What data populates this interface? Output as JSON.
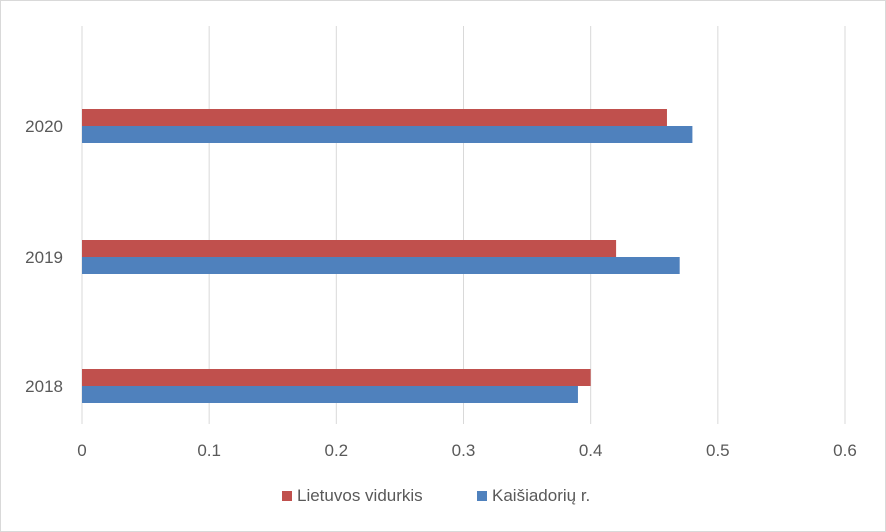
{
  "chart_data": {
    "type": "bar",
    "orientation": "horizontal",
    "categories": [
      "2018",
      "2019",
      "2020"
    ],
    "series": [
      {
        "name": "Lietuvos vidurkis",
        "color": "#c0504d",
        "values": [
          0.4,
          0.42,
          0.46
        ]
      },
      {
        "name": "Kaišiadorių r.",
        "color": "#4f81bd",
        "values": [
          0.39,
          0.47,
          0.48
        ]
      }
    ],
    "xlim": [
      0,
      0.6
    ],
    "xticks": [
      "0",
      "0.1",
      "0.2",
      "0.3",
      "0.4",
      "0.5",
      "0.6"
    ],
    "grid": "vertical",
    "legend_position": "bottom"
  }
}
